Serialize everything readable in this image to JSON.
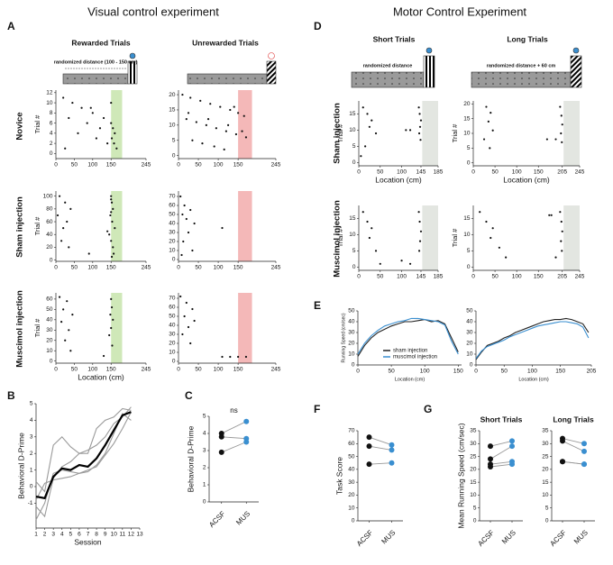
{
  "figure": {
    "titles": [
      "Visual control experiment",
      "Motor Control Experiment"
    ],
    "panels": [
      "A",
      "B",
      "C",
      "D",
      "E",
      "F",
      "G"
    ],
    "column_titles": [
      "Rewarded Trials",
      "Unrewarded Trials",
      "Short Trials",
      "Long Trials"
    ],
    "row_labels": [
      "Novice",
      "Sham injection",
      "Muscimol injection",
      "Sham injection",
      "Muscimol injection"
    ],
    "schematics": [
      "randomized distance (100 - 150 cm)",
      "randomized distance",
      "randomized distance + 60 cm"
    ]
  },
  "chart_data": [
    {
      "type": "raster",
      "ylabel": "Trial #",
      "xlim": [
        0,
        245
      ],
      "ylim": [
        -1,
        12.5
      ],
      "xticks": [
        0,
        50,
        100,
        150,
        245
      ],
      "yticks": [
        0,
        2,
        4,
        6,
        8,
        10,
        12
      ],
      "zone": [
        150,
        180
      ],
      "zone_color": "#cfe8b8",
      "color": "#111111",
      "points": {
        "x": [
          20,
          45,
          70,
          100,
          130,
          150,
          155,
          160,
          35,
          85,
          120,
          152,
          158,
          60,
          110,
          140,
          165,
          25,
          95,
          150
        ],
        "y": [
          11,
          10,
          9,
          8,
          7,
          6,
          5,
          4,
          7,
          6,
          5,
          3,
          2,
          4,
          3,
          2,
          1,
          1,
          9,
          10
        ]
      }
    },
    {
      "type": "raster",
      "xlim": [
        0,
        245
      ],
      "ylim": [
        -1,
        21.5
      ],
      "xticks": [
        0,
        50,
        100,
        150,
        245
      ],
      "yticks": [
        0,
        5,
        10,
        15,
        20
      ],
      "zone": [
        150,
        185
      ],
      "zone_color": "#f4b8b8",
      "color": "#111111",
      "points": {
        "x": [
          10,
          30,
          55,
          80,
          105,
          130,
          150,
          165,
          20,
          45,
          70,
          95,
          120,
          145,
          170,
          35,
          60,
          90,
          115,
          140,
          160,
          25,
          75,
          125
        ],
        "y": [
          20,
          19,
          18,
          17,
          16,
          15,
          14,
          13,
          12,
          11,
          10,
          9,
          8,
          7,
          6,
          5,
          4,
          3,
          2,
          16,
          8,
          14,
          12,
          10
        ]
      }
    },
    {
      "type": "raster",
      "ylabel": "Trial #",
      "xlim": [
        0,
        245
      ],
      "ylim": [
        -2,
        108
      ],
      "xticks": [
        0,
        50,
        100,
        150,
        245
      ],
      "yticks": [
        0,
        20,
        40,
        60,
        80,
        100
      ],
      "zone": [
        150,
        180
      ],
      "zone_color": "#cfe8b8",
      "color": "#111111",
      "points": {
        "x": [
          10,
          25,
          40,
          5,
          30,
          150,
          152,
          155,
          148,
          153,
          160,
          145,
          150,
          155,
          157,
          140,
          150,
          35,
          20,
          90,
          15,
          152,
          150
        ],
        "y": [
          100,
          90,
          80,
          70,
          60,
          100,
          90,
          80,
          70,
          60,
          50,
          40,
          30,
          20,
          10,
          45,
          95,
          20,
          50,
          10,
          30,
          5,
          75
        ]
      }
    },
    {
      "type": "raster",
      "xlim": [
        0,
        245
      ],
      "ylim": [
        -2,
        76
      ],
      "xticks": [
        0,
        50,
        100,
        150,
        245
      ],
      "yticks": [
        0,
        10,
        20,
        30,
        40,
        50,
        60,
        70
      ],
      "zone": [
        150,
        185
      ],
      "zone_color": "#f4b8b8",
      "color": "#111111",
      "points": {
        "x": [
          5,
          15,
          30,
          10,
          20,
          40,
          25,
          12,
          110,
          35,
          8
        ],
        "y": [
          70,
          60,
          55,
          50,
          45,
          40,
          30,
          20,
          35,
          10,
          5
        ]
      }
    },
    {
      "type": "raster",
      "ylabel": "Trial #",
      "xlabel": "Location (cm)",
      "xlim": [
        0,
        245
      ],
      "ylim": [
        -2,
        66
      ],
      "xticks": [
        0,
        50,
        100,
        150,
        245
      ],
      "yticks": [
        0,
        10,
        20,
        30,
        40,
        50,
        60
      ],
      "zone": [
        150,
        180
      ],
      "zone_color": "#cfe8b8",
      "color": "#111111",
      "points": {
        "x": [
          10,
          30,
          20,
          45,
          15,
          35,
          150,
          152,
          148,
          155,
          150,
          145,
          153,
          25,
          40,
          130
        ],
        "y": [
          62,
          58,
          50,
          45,
          38,
          30,
          60,
          52,
          45,
          40,
          32,
          25,
          15,
          20,
          10,
          5
        ]
      }
    },
    {
      "type": "raster",
      "xlim": [
        0,
        245
      ],
      "ylim": [
        -2,
        76
      ],
      "xticks": [
        0,
        50,
        100,
        150,
        245
      ],
      "yticks": [
        0,
        10,
        20,
        30,
        40,
        50,
        60,
        70
      ],
      "zone": [
        150,
        185
      ],
      "zone_color": "#f4b8b8",
      "color": "#111111",
      "points": {
        "x": [
          5,
          20,
          35,
          15,
          40,
          25,
          10,
          30,
          110,
          130,
          150,
          170
        ],
        "y": [
          72,
          65,
          58,
          50,
          45,
          38,
          30,
          20,
          5,
          5,
          5,
          5
        ]
      }
    },
    {
      "type": "raster",
      "ylabel": "Trial #",
      "xlabel": "Location (cm)",
      "xlim": [
        0,
        185
      ],
      "ylim": [
        -1,
        19
      ],
      "xticks": [
        0,
        50,
        100,
        145,
        185
      ],
      "yticks": [
        0,
        5,
        10,
        15
      ],
      "zone": [
        148,
        185
      ],
      "zone_color": "#e3e6e1",
      "color": "#111111",
      "points": {
        "x": [
          10,
          20,
          30,
          25,
          40,
          15,
          140,
          142,
          145,
          143,
          141,
          144,
          110,
          120,
          5
        ],
        "y": [
          17,
          15,
          13,
          11,
          9,
          5,
          17,
          15,
          13,
          11,
          9,
          7,
          10,
          10,
          2
        ]
      }
    },
    {
      "type": "raster",
      "ylabel": "Trial #",
      "xlabel": "Location (cm)",
      "xlim": [
        0,
        245
      ],
      "ylim": [
        -1,
        21
      ],
      "xticks": [
        0,
        50,
        100,
        150,
        205,
        245
      ],
      "yticks": [
        0,
        5,
        10,
        15,
        20
      ],
      "zone": [
        208,
        245
      ],
      "zone_color": "#e3e6e1",
      "color": "#111111",
      "points": {
        "x": [
          30,
          40,
          35,
          45,
          25,
          200,
          203,
          205,
          202,
          204,
          170,
          190,
          38
        ],
        "y": [
          19,
          17,
          14,
          11,
          8,
          19,
          16,
          13,
          10,
          7,
          8,
          8,
          5
        ]
      }
    },
    {
      "type": "raster",
      "ylabel": "Trial #",
      "xlim": [
        0,
        185
      ],
      "ylim": [
        -1,
        19
      ],
      "xticks": [
        0,
        50,
        100,
        145,
        185
      ],
      "yticks": [
        0,
        5,
        10,
        15
      ],
      "zone": [
        148,
        185
      ],
      "zone_color": "#e3e6e1",
      "color": "#111111",
      "points": {
        "x": [
          10,
          20,
          30,
          25,
          40,
          140,
          142,
          145,
          143,
          141,
          120,
          100,
          50
        ],
        "y": [
          17,
          14,
          12,
          9,
          5,
          17,
          14,
          11,
          8,
          5,
          1,
          2,
          1
        ]
      }
    },
    {
      "type": "raster",
      "ylabel": "Trial #",
      "xlim": [
        0,
        245
      ],
      "ylim": [
        -1,
        19
      ],
      "xticks": [
        0,
        50,
        100,
        150,
        205,
        245
      ],
      "yticks": [
        0,
        5,
        10,
        15
      ],
      "zone": [
        208,
        245
      ],
      "zone_color": "#e3e6e1",
      "color": "#111111",
      "points": {
        "x": [
          15,
          30,
          45,
          40,
          60,
          75,
          200,
          203,
          205,
          202,
          204,
          175,
          180,
          190
        ],
        "y": [
          17,
          14,
          12,
          9,
          6,
          3,
          17,
          14,
          11,
          8,
          5,
          16,
          16,
          3
        ]
      }
    },
    {
      "type": "line",
      "ylabel": "Running Speed (cm/sec)",
      "xlabel": "Location (cm)",
      "xlim": [
        0,
        155
      ],
      "ylim": [
        0,
        50
      ],
      "xticks": [
        0,
        50,
        100,
        150
      ],
      "yticks": [
        0,
        10,
        20,
        30,
        40,
        50
      ],
      "x": [
        0,
        10,
        20,
        30,
        40,
        50,
        60,
        70,
        80,
        90,
        100,
        110,
        120,
        130,
        140,
        150
      ],
      "series": [
        {
          "name": "sham injection",
          "color": "#222222",
          "values": [
            8,
            18,
            25,
            30,
            33,
            36,
            38,
            40,
            40,
            41,
            42,
            40,
            41,
            38,
            25,
            12
          ]
        },
        {
          "name": "muscimol injection",
          "color": "#3a8fd0",
          "values": [
            10,
            20,
            27,
            32,
            36,
            38,
            40,
            41,
            43,
            43,
            42,
            41,
            40,
            37,
            22,
            10
          ]
        }
      ]
    },
    {
      "type": "line",
      "xlabel": "Location (cm)",
      "xlim": [
        0,
        205
      ],
      "ylim": [
        0,
        50
      ],
      "xticks": [
        0,
        50,
        100,
        150,
        205
      ],
      "yticks": [
        0,
        10,
        20,
        30,
        40,
        50
      ],
      "x": [
        0,
        10,
        20,
        30,
        40,
        50,
        60,
        70,
        80,
        90,
        100,
        110,
        120,
        130,
        140,
        150,
        160,
        170,
        180,
        190,
        200
      ],
      "series": [
        {
          "color": "#222222",
          "values": [
            5,
            12,
            18,
            20,
            22,
            25,
            27,
            30,
            32,
            34,
            36,
            38,
            40,
            41,
            42,
            42,
            43,
            42,
            40,
            38,
            30
          ]
        },
        {
          "color": "#3a8fd0",
          "values": [
            6,
            13,
            17,
            19,
            21,
            23,
            26,
            28,
            30,
            32,
            34,
            36,
            37,
            38,
            39,
            40,
            40,
            39,
            38,
            35,
            25
          ]
        }
      ]
    },
    {
      "type": "line",
      "ylabel": "Behavioral D-Prime",
      "xlabel": "Session",
      "xlim": [
        1,
        13
      ],
      "ylim": [
        -2.5,
        5
      ],
      "xticks": [
        1,
        2,
        3,
        4,
        5,
        6,
        7,
        8,
        9,
        10,
        11,
        12,
        13
      ],
      "yticks": [
        -1,
        0,
        1,
        2,
        3,
        4,
        5
      ],
      "x": [
        1,
        2,
        3,
        4,
        5,
        6,
        7,
        8,
        9,
        10,
        11,
        12
      ],
      "series": [
        {
          "color": "#9a9a9a",
          "values": [
            0.3,
            -0.3,
            2.5,
            3.0,
            2.4,
            2.0,
            2.0,
            3.5,
            4.0,
            4.2,
            4.7,
            4.6
          ]
        },
        {
          "color": "#9a9a9a",
          "values": [
            -1.2,
            -1.8,
            0.5,
            1.2,
            1.5,
            2.0,
            2.2,
            2.5,
            3.0,
            3.8,
            4.2,
            4.8
          ]
        },
        {
          "color": "#9a9a9a",
          "values": [
            -0.8,
            0.2,
            0.4,
            0.5,
            0.6,
            0.8,
            0.9,
            1.3,
            2.0,
            3.2,
            4.4,
            4.0
          ]
        },
        {
          "color": "#9a9a9a",
          "values": [
            -2.0,
            -1.0,
            0.8,
            1.0,
            0.9,
            0.8,
            1.0,
            1.2,
            1.9,
            2.6,
            3.5,
            4.5
          ]
        },
        {
          "color": "#000000",
          "line_width": 2.2,
          "values": [
            -0.6,
            -0.7,
            0.6,
            1.1,
            1.0,
            1.3,
            1.2,
            1.7,
            2.5,
            3.4,
            4.3,
            4.5
          ]
        }
      ]
    },
    {
      "type": "paired",
      "ylabel": "Behavioral D-Prime",
      "annotation": "ns",
      "categories": [
        "ACSF",
        "MUS"
      ],
      "category_colors": [
        "#111111",
        "#3a8fd0"
      ],
      "ylim": [
        0,
        5
      ],
      "yticks": [
        0,
        1,
        2,
        3,
        4,
        5
      ],
      "series": [
        {
          "values": [
            4.0,
            4.7
          ]
        },
        {
          "values": [
            3.8,
            3.7
          ]
        },
        {
          "values": [
            2.9,
            3.5
          ]
        }
      ]
    },
    {
      "type": "paired",
      "ylabel": "Task Score",
      "categories": [
        "ACSF",
        "MUS"
      ],
      "category_colors": [
        "#111111",
        "#3a8fd0"
      ],
      "ylim": [
        0,
        70
      ],
      "yticks": [
        0,
        10,
        20,
        30,
        40,
        50,
        60,
        70
      ],
      "series": [
        {
          "values": [
            65,
            59
          ]
        },
        {
          "values": [
            58,
            55
          ]
        },
        {
          "values": [
            44,
            45
          ]
        }
      ]
    },
    {
      "type": "paired",
      "title": "Short Trials",
      "ylabel": "Mean Running Speed (cm/sec)",
      "categories": [
        "ACSF",
        "MUS"
      ],
      "category_colors": [
        "#111111",
        "#3a8fd0"
      ],
      "ylim": [
        0,
        35
      ],
      "yticks": [
        0,
        5,
        10,
        15,
        20,
        25,
        30,
        35
      ],
      "series": [
        {
          "values": [
            29,
            31
          ]
        },
        {
          "values": [
            24,
            29
          ]
        },
        {
          "values": [
            22,
            23
          ]
        },
        {
          "values": [
            21,
            22
          ]
        }
      ]
    },
    {
      "type": "paired",
      "title": "Long Trials",
      "categories": [
        "ACSF",
        "MUS"
      ],
      "category_colors": [
        "#111111",
        "#3a8fd0"
      ],
      "ylim": [
        0,
        35
      ],
      "yticks": [
        0,
        5,
        10,
        15,
        20,
        25,
        30,
        35
      ],
      "series": [
        {
          "values": [
            32,
            30
          ]
        },
        {
          "values": [
            31,
            27
          ]
        },
        {
          "values": [
            23,
            22
          ]
        },
        {
          "values": [
            23,
            22
          ]
        }
      ]
    }
  ]
}
